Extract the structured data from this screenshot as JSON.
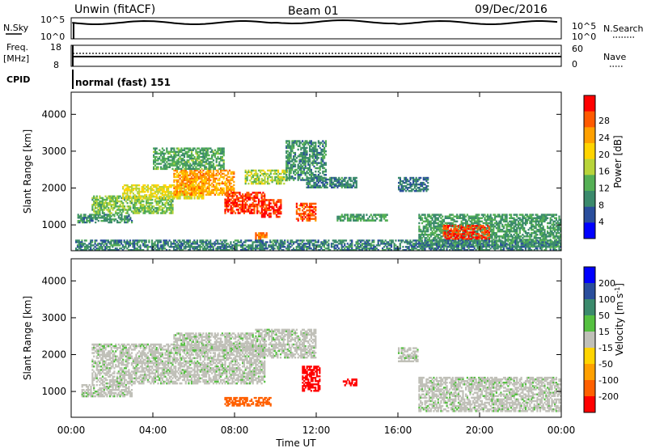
{
  "header": {
    "station": "Unwin (fitACF)",
    "beam": "Beam 01",
    "date": "09/Dec/2016"
  },
  "sky_panel": {
    "left_label": "N.Sky",
    "right_label": "N.Search",
    "left_ticks": [
      "10^5",
      "10^0"
    ],
    "right_ticks": [
      "10^5",
      "10^0"
    ]
  },
  "freq_panel": {
    "left_label_1": "Freq.",
    "left_label_2": "[MHz]",
    "left_ticks": [
      "18",
      "8"
    ],
    "right_label": "Nave",
    "right_ticks": [
      "60",
      "0"
    ]
  },
  "cpid": {
    "label": "CPID",
    "value": "normal (fast) 151"
  },
  "colors": {
    "power": [
      "#0000ff",
      "#2a4e9c",
      "#3b8a6c",
      "#55b055",
      "#b8d43a",
      "#ffd400",
      "#ffa000",
      "#ff5a00",
      "#ff0000"
    ],
    "velocity": [
      "#0000ff",
      "#2a4e9c",
      "#3b8a6c",
      "#55c040",
      "#c0c0b8",
      "#ffd400",
      "#ffa000",
      "#ff6000",
      "#ff0000"
    ],
    "sky_line": "#000000",
    "freq_line": "#000000"
  },
  "chart_data": [
    {
      "type": "heatmap",
      "name": "power",
      "ylabel": "Slant Range [km]",
      "xlabel": "",
      "ylim": [
        300,
        4600
      ],
      "xlim_hours": [
        0,
        24
      ],
      "y_ticks": [
        1000,
        2000,
        3000,
        4000
      ],
      "colorbar_label": "Power [dB]",
      "colorbar_ticks": [
        "4",
        "8",
        "12",
        "16",
        "20",
        "24",
        "28"
      ],
      "colorbar_range": [
        0,
        30
      ],
      "regions": [
        {
          "t0": 0.3,
          "t1": 3.0,
          "r0": 1050,
          "r1": 1300,
          "v": 9
        },
        {
          "t0": 1.0,
          "t1": 5.0,
          "r0": 1300,
          "r1": 1800,
          "v": 13
        },
        {
          "t0": 2.5,
          "t1": 6.5,
          "r0": 1700,
          "r1": 2100,
          "v": 17
        },
        {
          "t0": 5.0,
          "t1": 8.0,
          "r0": 1800,
          "r1": 2500,
          "v": 22
        },
        {
          "t0": 7.5,
          "t1": 9.5,
          "r0": 1300,
          "r1": 1900,
          "v": 27
        },
        {
          "t0": 9.3,
          "t1": 10.3,
          "r0": 1200,
          "r1": 1700,
          "v": 28
        },
        {
          "t0": 4.0,
          "t1": 7.5,
          "r0": 2500,
          "r1": 3100,
          "v": 11
        },
        {
          "t0": 8.5,
          "t1": 10.6,
          "r0": 2100,
          "r1": 2500,
          "v": 15
        },
        {
          "t0": 10.5,
          "t1": 12.5,
          "r0": 2200,
          "r1": 3300,
          "v": 9
        },
        {
          "t0": 11.0,
          "t1": 12.0,
          "r0": 1100,
          "r1": 1600,
          "v": 26
        },
        {
          "t0": 11.5,
          "t1": 14.0,
          "r0": 2000,
          "r1": 2300,
          "v": 8
        },
        {
          "t0": 9.0,
          "t1": 9.6,
          "r0": 600,
          "r1": 800,
          "v": 24
        },
        {
          "t0": 13.0,
          "t1": 15.5,
          "r0": 1100,
          "r1": 1300,
          "v": 10
        },
        {
          "t0": 17.0,
          "t1": 24.0,
          "r0": 400,
          "r1": 1300,
          "v": 10
        },
        {
          "t0": 18.2,
          "t1": 20.5,
          "r0": 600,
          "r1": 1000,
          "v": 27
        },
        {
          "t0": 16.0,
          "t1": 17.5,
          "r0": 1900,
          "r1": 2300,
          "v": 7
        },
        {
          "t0": 0.2,
          "t1": 24.0,
          "r0": 300,
          "r1": 600,
          "v": 8
        }
      ]
    },
    {
      "type": "heatmap",
      "name": "velocity",
      "ylabel": "Slant Range [km]",
      "xlabel": "Time UT",
      "ylim": [
        300,
        4600
      ],
      "xlim_hours": [
        0,
        24
      ],
      "y_ticks": [
        1000,
        2000,
        3000,
        4000
      ],
      "x_ticks": [
        "00:00",
        "04:00",
        "08:00",
        "12:00",
        "16:00",
        "20:00",
        "00:00"
      ],
      "colorbar_label": "Velocity [m s^-1]",
      "colorbar_ticks": [
        "200",
        "100",
        "50",
        "15",
        "-15",
        "-50",
        "-100",
        "-200"
      ],
      "regions": [
        {
          "t0": 1.0,
          "t1": 9.5,
          "r0": 1200,
          "r1": 2300,
          "v": 0
        },
        {
          "t0": 5.0,
          "t1": 9.0,
          "r0": 2100,
          "r1": 2600,
          "v": 0
        },
        {
          "t0": 9.0,
          "t1": 12.0,
          "r0": 1900,
          "r1": 2700,
          "v": 0
        },
        {
          "t0": 11.3,
          "t1": 12.2,
          "r0": 1000,
          "r1": 1700,
          "v": -200
        },
        {
          "t0": 13.3,
          "t1": 14.0,
          "r0": 1150,
          "r1": 1350,
          "v": -200
        },
        {
          "t0": 7.5,
          "t1": 9.8,
          "r0": 600,
          "r1": 850,
          "v": -120
        },
        {
          "t0": 17.0,
          "t1": 24.0,
          "r0": 450,
          "r1": 1400,
          "v": 0
        },
        {
          "t0": 16.0,
          "t1": 17.0,
          "r0": 1800,
          "r1": 2200,
          "v": 0
        },
        {
          "t0": 0.5,
          "t1": 3.0,
          "r0": 850,
          "r1": 1200,
          "v": 0
        }
      ]
    }
  ]
}
